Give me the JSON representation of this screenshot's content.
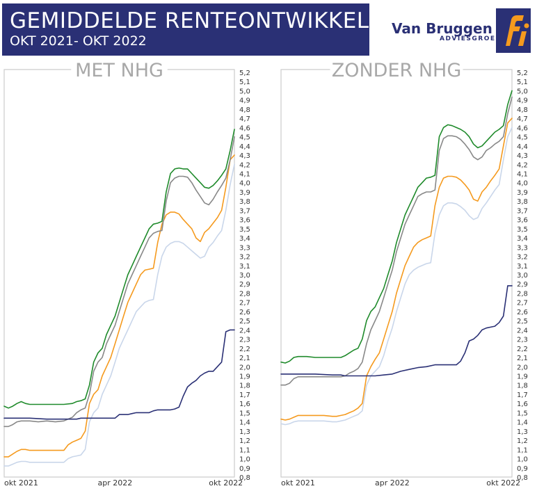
{
  "header": {
    "title": "GEMIDDELDE RENTEONTWIKKELING",
    "subtitle": "OKT 2021- OKT 2022",
    "brand_name": "Van Bruggen",
    "brand_sub": "ADVIESGROEP",
    "logo_text": "fi",
    "banner_color": "#2a3075"
  },
  "colors": {
    "green": "#1e8a2a",
    "gray": "#888888",
    "orange": "#f59a1e",
    "lightblue": "#c9d6ea",
    "navy": "#2a3075",
    "frame": "#cccccc",
    "title_gray": "#a8a8a8"
  },
  "chart_data": [
    {
      "type": "line",
      "title": "MET NHG",
      "x_tick_labels": [
        "okt 2021",
        "apr 2022",
        "okt 2022"
      ],
      "x_tick_positions": [
        0,
        26,
        52
      ],
      "xlim": [
        0,
        54
      ],
      "ylim": [
        0.8,
        5.2
      ],
      "y_tick_step": 0.1,
      "y_tick_labels": [
        "0,8",
        "0,9",
        "1,0",
        "1,1",
        "1,2",
        "1,3",
        "1,4",
        "1,5",
        "1,6",
        "1,7",
        "1,8",
        "1,9",
        "2,0",
        "2,1",
        "2,2",
        "2,3",
        "2,4",
        "2,5",
        "2,6",
        "2,7",
        "2,8",
        "2,9",
        "3,0",
        "3,1",
        "3,2",
        "3,3",
        "3,4",
        "3,5",
        "3,6",
        "3,7",
        "3,8",
        "3,9",
        "4,0",
        "4,1",
        "4,2",
        "4,3",
        "4,4",
        "4,5",
        "4,6",
        "4,7",
        "4,8",
        "4,9",
        "5,0",
        "5,1",
        "5,2"
      ],
      "grid": false,
      "series": [
        {
          "color": "green",
          "x": [
            0,
            1,
            2,
            3,
            4,
            5,
            6,
            8,
            10,
            12,
            14,
            16,
            17,
            18,
            19,
            20,
            21,
            22,
            23,
            24,
            25,
            26,
            27,
            28,
            29,
            30,
            31,
            32,
            33,
            34,
            35,
            36,
            37,
            38,
            39,
            40,
            41,
            42,
            43,
            44,
            45,
            46,
            47,
            48,
            49,
            50,
            51,
            52,
            53,
            54
          ],
          "y": [
            1.57,
            1.55,
            1.57,
            1.6,
            1.62,
            1.6,
            1.59,
            1.59,
            1.59,
            1.59,
            1.59,
            1.6,
            1.62,
            1.63,
            1.65,
            1.8,
            2.05,
            2.15,
            2.2,
            2.35,
            2.45,
            2.55,
            2.7,
            2.85,
            3.0,
            3.1,
            3.2,
            3.3,
            3.4,
            3.5,
            3.55,
            3.56,
            3.58,
            3.9,
            4.1,
            4.15,
            4.16,
            4.15,
            4.15,
            4.1,
            4.05,
            4.0,
            3.95,
            3.94,
            3.97,
            4.02,
            4.08,
            4.15,
            4.35,
            4.58
          ]
        },
        {
          "color": "gray",
          "x": [
            0,
            1,
            2,
            3,
            4,
            5,
            6,
            8,
            10,
            12,
            14,
            16,
            17,
            18,
            19,
            20,
            21,
            22,
            23,
            24,
            25,
            26,
            27,
            28,
            29,
            30,
            31,
            32,
            33,
            34,
            35,
            36,
            37,
            38,
            39,
            40,
            41,
            42,
            43,
            44,
            45,
            46,
            47,
            48,
            49,
            50,
            51,
            52,
            53,
            54
          ],
          "y": [
            1.35,
            1.35,
            1.37,
            1.4,
            1.41,
            1.41,
            1.41,
            1.4,
            1.41,
            1.4,
            1.41,
            1.45,
            1.5,
            1.53,
            1.55,
            1.7,
            1.95,
            2.05,
            2.1,
            2.25,
            2.35,
            2.45,
            2.6,
            2.75,
            2.9,
            3.0,
            3.1,
            3.2,
            3.3,
            3.4,
            3.45,
            3.47,
            3.48,
            3.8,
            4.0,
            4.05,
            4.07,
            4.07,
            4.06,
            4.0,
            3.92,
            3.85,
            3.78,
            3.76,
            3.82,
            3.9,
            3.97,
            4.05,
            4.25,
            4.5
          ]
        },
        {
          "color": "orange",
          "x": [
            0,
            1,
            2,
            3,
            4,
            5,
            6,
            8,
            10,
            12,
            14,
            15,
            16,
            17,
            18,
            19,
            20,
            21,
            22,
            23,
            24,
            25,
            26,
            27,
            28,
            29,
            30,
            31,
            32,
            33,
            34,
            35,
            36,
            37,
            38,
            39,
            40,
            41,
            42,
            43,
            44,
            45,
            46,
            47,
            48,
            49,
            50,
            51,
            52,
            53,
            54
          ],
          "y": [
            1.02,
            1.02,
            1.05,
            1.08,
            1.1,
            1.1,
            1.09,
            1.09,
            1.09,
            1.09,
            1.09,
            1.15,
            1.18,
            1.2,
            1.22,
            1.3,
            1.6,
            1.7,
            1.75,
            1.9,
            2.0,
            2.1,
            2.25,
            2.4,
            2.55,
            2.7,
            2.8,
            2.9,
            3.0,
            3.05,
            3.06,
            3.07,
            3.35,
            3.55,
            3.65,
            3.68,
            3.68,
            3.66,
            3.6,
            3.55,
            3.5,
            3.4,
            3.36,
            3.46,
            3.5,
            3.56,
            3.62,
            3.7,
            3.95,
            4.25,
            4.3
          ]
        },
        {
          "color": "lightblue",
          "x": [
            0,
            1,
            2,
            3,
            4,
            5,
            6,
            8,
            10,
            12,
            14,
            15,
            16,
            17,
            18,
            19,
            20,
            21,
            22,
            23,
            24,
            25,
            26,
            27,
            28,
            29,
            30,
            31,
            32,
            33,
            34,
            35,
            36,
            37,
            38,
            39,
            40,
            41,
            42,
            43,
            44,
            45,
            46,
            47,
            48,
            49,
            50,
            51,
            52,
            53,
            54
          ],
          "y": [
            0.92,
            0.92,
            0.94,
            0.96,
            0.97,
            0.97,
            0.96,
            0.96,
            0.96,
            0.96,
            0.96,
            1.0,
            1.02,
            1.03,
            1.04,
            1.1,
            1.4,
            1.5,
            1.55,
            1.7,
            1.8,
            1.9,
            2.05,
            2.2,
            2.3,
            2.4,
            2.5,
            2.6,
            2.65,
            2.7,
            2.72,
            2.73,
            3.0,
            3.2,
            3.3,
            3.34,
            3.36,
            3.36,
            3.34,
            3.3,
            3.26,
            3.22,
            3.18,
            3.2,
            3.3,
            3.35,
            3.42,
            3.48,
            3.7,
            3.98,
            4.2
          ]
        },
        {
          "color": "navy",
          "x": [
            0,
            6,
            10,
            14,
            16,
            17,
            18,
            20,
            22,
            24,
            26,
            27,
            28,
            29,
            30,
            31,
            32,
            33,
            34,
            35,
            36,
            37,
            38,
            39,
            40,
            41,
            42,
            43,
            44,
            45,
            46,
            47,
            48,
            49,
            50,
            51,
            52,
            53,
            54
          ],
          "y": [
            1.44,
            1.44,
            1.43,
            1.43,
            1.43,
            1.43,
            1.44,
            1.44,
            1.44,
            1.44,
            1.44,
            1.48,
            1.48,
            1.48,
            1.49,
            1.5,
            1.5,
            1.5,
            1.5,
            1.52,
            1.53,
            1.53,
            1.53,
            1.53,
            1.54,
            1.56,
            1.68,
            1.78,
            1.82,
            1.85,
            1.9,
            1.93,
            1.95,
            1.95,
            2.0,
            2.05,
            2.38,
            2.4,
            2.4
          ]
        }
      ]
    },
    {
      "type": "line",
      "title": "ZONDER NHG",
      "x_tick_labels": [
        "okt 2021",
        "apr 2022",
        "okt 2022"
      ],
      "x_tick_positions": [
        0,
        26,
        52
      ],
      "xlim": [
        0,
        54
      ],
      "ylim": [
        0.8,
        5.2
      ],
      "y_tick_step": 0.1,
      "y_tick_labels": [
        "0,8",
        "0,9",
        "1,0",
        "1,1",
        "1,2",
        "1,3",
        "1,4",
        "1,5",
        "1,6",
        "1,7",
        "1,8",
        "1,9",
        "2,0",
        "2,1",
        "2,2",
        "2,3",
        "2,4",
        "2,5",
        "2,6",
        "2,7",
        "2,8",
        "2,9",
        "3,0",
        "3,1",
        "3,2",
        "3,3",
        "3,4",
        "3,5",
        "3,6",
        "3,7",
        "3,8",
        "3,9",
        "4,0",
        "4,1",
        "4,2",
        "4,3",
        "4,4",
        "4,5",
        "4,6",
        "4,7",
        "4,8",
        "4,9",
        "5,0",
        "5,1",
        "5,2"
      ],
      "grid": false,
      "series": [
        {
          "color": "green",
          "x": [
            0,
            1,
            2,
            3,
            4,
            6,
            8,
            10,
            12,
            14,
            15,
            16,
            17,
            18,
            19,
            20,
            21,
            22,
            23,
            24,
            25,
            26,
            27,
            28,
            29,
            30,
            31,
            32,
            33,
            34,
            35,
            36,
            37,
            38,
            39,
            40,
            41,
            42,
            43,
            44,
            45,
            46,
            47,
            48,
            49,
            50,
            51,
            52,
            53,
            54
          ],
          "y": [
            2.05,
            2.04,
            2.06,
            2.1,
            2.11,
            2.11,
            2.1,
            2.1,
            2.1,
            2.1,
            2.12,
            2.15,
            2.18,
            2.2,
            2.3,
            2.5,
            2.6,
            2.65,
            2.75,
            2.85,
            3.0,
            3.15,
            3.35,
            3.5,
            3.65,
            3.75,
            3.85,
            3.95,
            4.0,
            4.05,
            4.06,
            4.08,
            4.5,
            4.6,
            4.63,
            4.62,
            4.6,
            4.58,
            4.55,
            4.5,
            4.42,
            4.38,
            4.4,
            4.45,
            4.5,
            4.55,
            4.58,
            4.62,
            4.85,
            5.0
          ]
        },
        {
          "color": "gray",
          "x": [
            0,
            1,
            2,
            3,
            4,
            6,
            8,
            10,
            12,
            14,
            15,
            16,
            17,
            18,
            19,
            20,
            21,
            22,
            23,
            24,
            25,
            26,
            27,
            28,
            29,
            30,
            31,
            32,
            33,
            34,
            35,
            36,
            37,
            38,
            39,
            40,
            41,
            42,
            43,
            44,
            45,
            46,
            47,
            48,
            49,
            50,
            51,
            52,
            53,
            54
          ],
          "y": [
            1.8,
            1.8,
            1.82,
            1.87,
            1.89,
            1.89,
            1.89,
            1.89,
            1.89,
            1.89,
            1.9,
            1.93,
            1.95,
            1.98,
            2.05,
            2.25,
            2.4,
            2.5,
            2.6,
            2.75,
            2.9,
            3.05,
            3.25,
            3.4,
            3.55,
            3.65,
            3.75,
            3.85,
            3.88,
            3.9,
            3.9,
            3.92,
            4.35,
            4.48,
            4.51,
            4.51,
            4.5,
            4.47,
            4.42,
            4.36,
            4.28,
            4.25,
            4.28,
            4.35,
            4.38,
            4.42,
            4.45,
            4.5,
            4.75,
            4.93
          ]
        },
        {
          "color": "orange",
          "x": [
            0,
            1,
            2,
            3,
            4,
            6,
            8,
            10,
            12,
            13,
            14,
            15,
            16,
            17,
            18,
            19,
            20,
            21,
            22,
            23,
            24,
            25,
            26,
            27,
            28,
            29,
            30,
            31,
            32,
            33,
            34,
            35,
            36,
            37,
            38,
            39,
            40,
            41,
            42,
            43,
            44,
            45,
            46,
            47,
            48,
            49,
            50,
            51,
            52,
            53,
            54
          ],
          "y": [
            1.43,
            1.42,
            1.43,
            1.45,
            1.47,
            1.47,
            1.47,
            1.47,
            1.46,
            1.46,
            1.47,
            1.48,
            1.5,
            1.52,
            1.55,
            1.6,
            1.9,
            2.0,
            2.08,
            2.15,
            2.3,
            2.45,
            2.6,
            2.8,
            2.95,
            3.1,
            3.2,
            3.3,
            3.35,
            3.38,
            3.4,
            3.42,
            3.75,
            3.95,
            4.05,
            4.07,
            4.07,
            4.06,
            4.03,
            3.98,
            3.92,
            3.82,
            3.8,
            3.9,
            3.95,
            4.02,
            4.08,
            4.15,
            4.4,
            4.65,
            4.7
          ]
        },
        {
          "color": "lightblue",
          "x": [
            0,
            1,
            2,
            3,
            4,
            6,
            8,
            10,
            12,
            13,
            14,
            15,
            16,
            17,
            18,
            19,
            20,
            21,
            22,
            23,
            24,
            25,
            26,
            27,
            28,
            29,
            30,
            31,
            32,
            33,
            34,
            35,
            36,
            37,
            38,
            39,
            40,
            41,
            42,
            43,
            44,
            45,
            46,
            47,
            48,
            49,
            50,
            51,
            52,
            53,
            54
          ],
          "y": [
            1.38,
            1.37,
            1.38,
            1.4,
            1.41,
            1.41,
            1.41,
            1.41,
            1.4,
            1.4,
            1.41,
            1.42,
            1.44,
            1.46,
            1.48,
            1.52,
            1.8,
            1.9,
            1.95,
            2.0,
            2.12,
            2.28,
            2.42,
            2.6,
            2.75,
            2.9,
            3.0,
            3.05,
            3.08,
            3.1,
            3.12,
            3.13,
            3.45,
            3.65,
            3.75,
            3.78,
            3.78,
            3.77,
            3.74,
            3.7,
            3.64,
            3.6,
            3.62,
            3.72,
            3.78,
            3.85,
            3.92,
            3.98,
            4.25,
            4.5,
            4.6
          ]
        },
        {
          "color": "navy",
          "x": [
            0,
            4,
            8,
            12,
            14,
            15,
            16,
            17,
            18,
            20,
            22,
            24,
            26,
            28,
            30,
            32,
            34,
            36,
            38,
            40,
            41,
            42,
            43,
            44,
            45,
            46,
            47,
            48,
            49,
            50,
            51,
            52,
            53,
            54
          ],
          "y": [
            1.92,
            1.92,
            1.92,
            1.91,
            1.91,
            1.9,
            1.9,
            1.9,
            1.9,
            1.9,
            1.9,
            1.91,
            1.92,
            1.95,
            1.97,
            1.99,
            2.0,
            2.02,
            2.02,
            2.02,
            2.02,
            2.06,
            2.15,
            2.28,
            2.3,
            2.34,
            2.4,
            2.42,
            2.43,
            2.44,
            2.48,
            2.55,
            2.88,
            2.88
          ]
        }
      ]
    }
  ]
}
